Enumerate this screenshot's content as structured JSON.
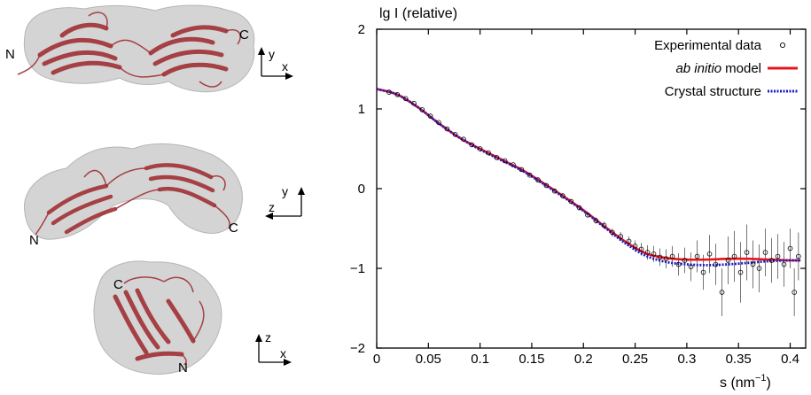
{
  "structures": [
    {
      "n_label": "N",
      "c_label": "C",
      "axes": {
        "vertical": "y",
        "horizontal": "x"
      }
    },
    {
      "n_label": "N",
      "c_label": "C",
      "axes": {
        "vertical": "y",
        "horizontal": "z"
      }
    },
    {
      "n_label": "N",
      "c_label": "C",
      "axes": {
        "vertical": "z",
        "horizontal": "x"
      }
    }
  ],
  "colors": {
    "surface": "#c9c9c9",
    "ribbon": "#a03036",
    "experimental": "#000000",
    "ab_initio": "#e8141c",
    "crystal": "#1c1cc8"
  },
  "chart_data": {
    "type": "scatter",
    "ylabel": "lg I (relative)",
    "xlabel_main": "s (nm",
    "xlabel_sup": "−1",
    "xlabel_close": ")",
    "xlim": [
      0,
      0.415
    ],
    "ylim": [
      -2,
      2
    ],
    "x_ticks": [
      0,
      0.05,
      0.1,
      0.15,
      0.2,
      0.25,
      0.3,
      0.35,
      0.4
    ],
    "x_tick_labels": [
      "0",
      "0.05",
      "0.1",
      "0.15",
      "0.2",
      "0.25",
      "0.3",
      "0.35",
      "0.4"
    ],
    "y_ticks": [
      -2,
      -1,
      0,
      1,
      2
    ],
    "y_tick_labels": [
      "−2",
      "−1",
      "0",
      "1",
      "2"
    ],
    "legend": {
      "position": "top-right",
      "entries": [
        {
          "label": "Experimental data",
          "style": "marker"
        },
        {
          "label_italic": "ab initio",
          "label": "model",
          "style": "solid"
        },
        {
          "label": "Crystal structure",
          "style": "dotted"
        }
      ]
    },
    "series": [
      {
        "name": "Crystal structure",
        "style": "dotted",
        "x": [
          0,
          0.02,
          0.04,
          0.06,
          0.08,
          0.1,
          0.12,
          0.14,
          0.16,
          0.18,
          0.2,
          0.22,
          0.24,
          0.26,
          0.28,
          0.3,
          0.32,
          0.34,
          0.36,
          0.38,
          0.4,
          0.41
        ],
        "y": [
          1.25,
          1.18,
          1.02,
          0.82,
          0.64,
          0.49,
          0.36,
          0.23,
          0.07,
          -0.1,
          -0.28,
          -0.48,
          -0.68,
          -0.84,
          -0.92,
          -0.95,
          -0.96,
          -0.95,
          -0.93,
          -0.91,
          -0.9,
          -0.9
        ]
      },
      {
        "name": "ab initio model",
        "style": "solid",
        "x": [
          0,
          0.02,
          0.04,
          0.06,
          0.08,
          0.1,
          0.12,
          0.14,
          0.16,
          0.18,
          0.2,
          0.22,
          0.24,
          0.26,
          0.28,
          0.3,
          0.32,
          0.34,
          0.36,
          0.38,
          0.4,
          0.41
        ],
        "y": [
          1.25,
          1.18,
          1.02,
          0.82,
          0.64,
          0.5,
          0.37,
          0.24,
          0.08,
          -0.09,
          -0.27,
          -0.47,
          -0.66,
          -0.81,
          -0.87,
          -0.89,
          -0.89,
          -0.88,
          -0.88,
          -0.89,
          -0.9,
          -0.9
        ]
      },
      {
        "name": "Experimental data",
        "style": "marker",
        "points": [
          [
            0.012,
            1.21,
            0.005
          ],
          [
            0.02,
            1.18,
            0.005
          ],
          [
            0.028,
            1.13,
            0.005
          ],
          [
            0.036,
            1.07,
            0.005
          ],
          [
            0.044,
            0.99,
            0.005
          ],
          [
            0.052,
            0.91,
            0.005
          ],
          [
            0.06,
            0.83,
            0.006
          ],
          [
            0.068,
            0.75,
            0.006
          ],
          [
            0.076,
            0.68,
            0.006
          ],
          [
            0.084,
            0.62,
            0.007
          ],
          [
            0.092,
            0.55,
            0.007
          ],
          [
            0.1,
            0.5,
            0.008
          ],
          [
            0.108,
            0.45,
            0.008
          ],
          [
            0.116,
            0.39,
            0.009
          ],
          [
            0.124,
            0.35,
            0.01
          ],
          [
            0.132,
            0.3,
            0.01
          ],
          [
            0.14,
            0.24,
            0.012
          ],
          [
            0.148,
            0.17,
            0.013
          ],
          [
            0.156,
            0.11,
            0.015
          ],
          [
            0.164,
            0.04,
            0.017
          ],
          [
            0.172,
            -0.03,
            0.02
          ],
          [
            0.18,
            -0.09,
            0.022
          ],
          [
            0.188,
            -0.16,
            0.026
          ],
          [
            0.196,
            -0.24,
            0.03
          ],
          [
            0.204,
            -0.33,
            0.035
          ],
          [
            0.212,
            -0.4,
            0.04
          ],
          [
            0.22,
            -0.46,
            0.045
          ],
          [
            0.228,
            -0.55,
            0.05
          ],
          [
            0.236,
            -0.6,
            0.055
          ],
          [
            0.244,
            -0.66,
            0.06
          ],
          [
            0.25,
            -0.72,
            0.07
          ],
          [
            0.256,
            -0.76,
            0.08
          ],
          [
            0.262,
            -0.8,
            0.09
          ],
          [
            0.268,
            -0.82,
            0.1
          ],
          [
            0.274,
            -0.86,
            0.11
          ],
          [
            0.28,
            -0.88,
            0.12
          ],
          [
            0.286,
            -0.85,
            0.13
          ],
          [
            0.292,
            -0.95,
            0.14
          ],
          [
            0.298,
            -0.9,
            0.16
          ],
          [
            0.304,
            -0.98,
            0.18
          ],
          [
            0.31,
            -0.85,
            0.2
          ],
          [
            0.316,
            -1.05,
            0.22
          ],
          [
            0.322,
            -0.82,
            0.24
          ],
          [
            0.328,
            -0.95,
            0.26
          ],
          [
            0.334,
            -1.3,
            0.3
          ],
          [
            0.34,
            -0.9,
            0.3
          ],
          [
            0.346,
            -0.85,
            0.32
          ],
          [
            0.352,
            -1.05,
            0.38
          ],
          [
            0.358,
            -0.8,
            0.35
          ],
          [
            0.364,
            -0.95,
            0.3
          ],
          [
            0.37,
            -1.0,
            0.3
          ],
          [
            0.376,
            -0.8,
            0.3
          ],
          [
            0.382,
            -0.9,
            0.28
          ],
          [
            0.388,
            -0.85,
            0.28
          ],
          [
            0.394,
            -0.95,
            0.28
          ],
          [
            0.4,
            -0.75,
            0.25
          ],
          [
            0.404,
            -1.3,
            0.3
          ],
          [
            0.408,
            -0.85,
            0.3
          ]
        ]
      }
    ]
  }
}
